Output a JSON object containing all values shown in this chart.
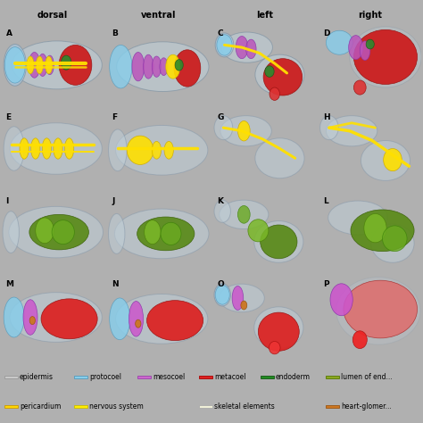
{
  "figure_bg": "#b0b0b0",
  "cell_bg": "#c8c8c8",
  "grid_bg": "#b0b0b0",
  "col_header_labels": [
    "dorsal",
    "ventral",
    "left",
    "right"
  ],
  "cell_labels": [
    [
      "A",
      "B",
      "C",
      "D"
    ],
    [
      "E",
      "F",
      "G",
      "H"
    ],
    [
      "I",
      "J",
      "K",
      "L"
    ],
    [
      "M",
      "N",
      "O",
      "P"
    ]
  ],
  "legend_items_row1": [
    {
      "label": "epidermis",
      "color": "#c8c8c8",
      "border": "#999999"
    },
    {
      "label": "protocoel",
      "color": "#87ceeb",
      "border": "#5599bb"
    },
    {
      "label": "mesocoel",
      "color": "#cc66cc",
      "border": "#9944aa"
    },
    {
      "label": "metacoel",
      "color": "#dd2222",
      "border": "#aa0000"
    },
    {
      "label": "endoderm",
      "color": "#228b22",
      "border": "#115511"
    },
    {
      "label": "lumen of end...",
      "color": "#8ba822",
      "border": "#557700"
    }
  ],
  "legend_items_row2": [
    {
      "label": "pericardium",
      "color": "#ffd700",
      "border": "#cc9900"
    },
    {
      "label": "nervous system",
      "color": "#ffee00",
      "border": "#ccbb00"
    },
    {
      "label": "skeletal elements",
      "color": "#f0f0d8",
      "border": "#aaaaaa"
    },
    {
      "label": "heart-glomer...",
      "color": "#cc7722",
      "border": "#995511"
    }
  ]
}
